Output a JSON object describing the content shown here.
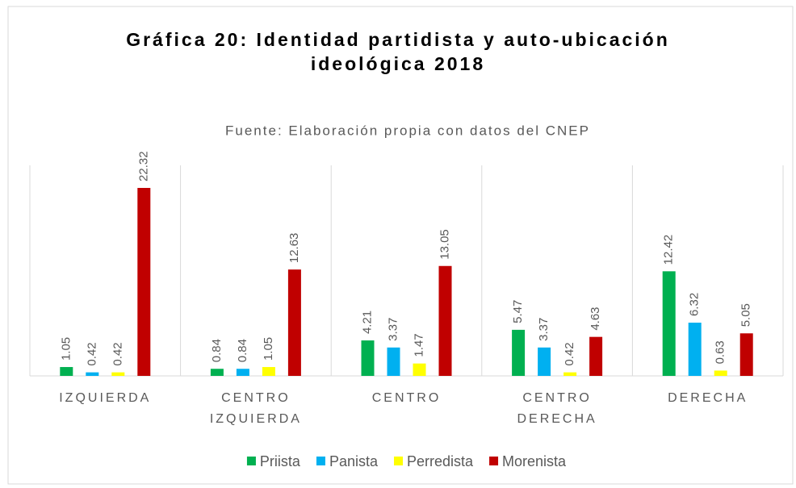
{
  "chart_data": {
    "type": "bar",
    "title": "Gráfica 20: Identidad partidista y auto-ubicación ideológica 2018",
    "subtitle": "Fuente: Elaboración propia con datos del CNEP",
    "categories": [
      "IZQUIERDA",
      "CENTRO IZQUIERDA",
      "CENTRO",
      "CENTRO DERECHA",
      "DERECHA"
    ],
    "series": [
      {
        "name": "Priista",
        "color": "#00b050",
        "values": [
          1.05,
          0.84,
          4.21,
          5.47,
          12.42
        ]
      },
      {
        "name": "Panista",
        "color": "#00b0f0",
        "values": [
          0.42,
          0.84,
          3.37,
          3.37,
          6.32
        ]
      },
      {
        "name": "Perredista",
        "color": "#ffff00",
        "values": [
          0.42,
          1.05,
          1.47,
          0.42,
          0.63
        ]
      },
      {
        "name": "Morenista",
        "color": "#c00000",
        "values": [
          22.32,
          12.63,
          13.05,
          4.63,
          5.05
        ]
      }
    ],
    "ylim": [
      0,
      25
    ]
  }
}
